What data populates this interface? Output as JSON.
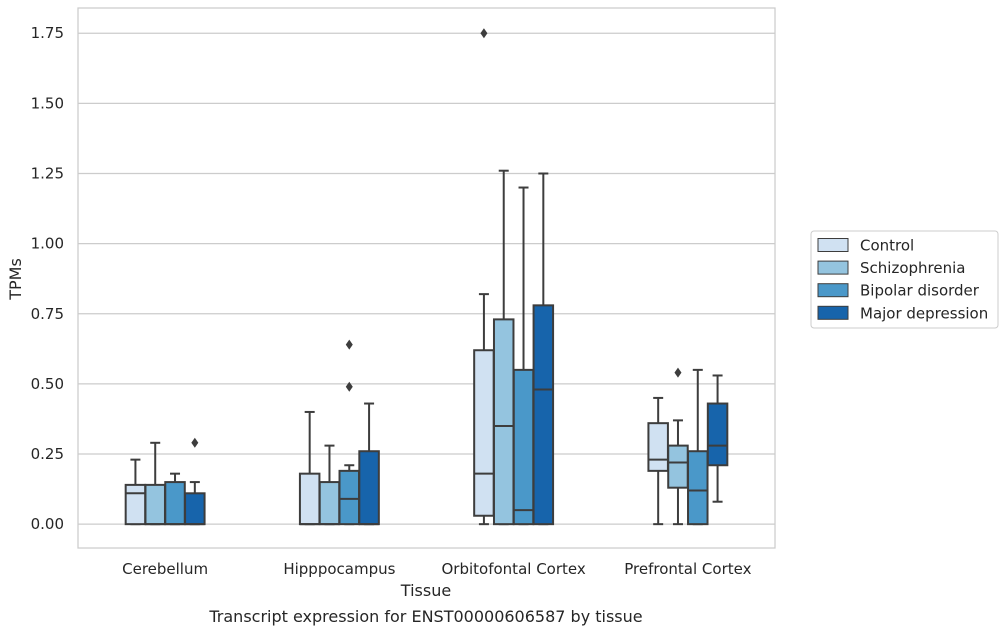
{
  "chart_data": {
    "type": "boxplot",
    "caption": "Transcript expression for ENST00000606587 by tissue",
    "xlabel": "Tissue",
    "ylabel": "TPMs",
    "ylim": [
      -0.085,
      1.84
    ],
    "yticks": [
      0.0,
      0.25,
      0.5,
      0.75,
      1.0,
      1.25,
      1.5,
      1.75
    ],
    "ytick_labels": [
      "0.00",
      "0.25",
      "0.50",
      "0.75",
      "1.00",
      "1.25",
      "1.50",
      "1.75"
    ],
    "grid": "horizontal",
    "legend_position": "right",
    "categories": [
      "Cerebellum",
      "Hipppocampus",
      "Orbitofontal Cortex",
      "Prefrontal Cortex"
    ],
    "series": [
      {
        "name": "Control",
        "color": "#d0e1f2",
        "boxes": [
          {
            "whislo": 0.0,
            "q1": 0.0,
            "med": 0.11,
            "q3": 0.14,
            "whishi": 0.23,
            "fliers": []
          },
          {
            "whislo": 0.0,
            "q1": 0.0,
            "med": 0.0,
            "q3": 0.18,
            "whishi": 0.4,
            "fliers": []
          },
          {
            "whislo": 0.0,
            "q1": 0.03,
            "med": 0.18,
            "q3": 0.62,
            "whishi": 0.82,
            "fliers": [
              1.75
            ]
          },
          {
            "whislo": 0.0,
            "q1": 0.19,
            "med": 0.23,
            "q3": 0.36,
            "whishi": 0.45,
            "fliers": []
          }
        ]
      },
      {
        "name": "Schizophrenia",
        "color": "#94c4df",
        "boxes": [
          {
            "whislo": 0.0,
            "q1": 0.0,
            "med": 0.0,
            "q3": 0.14,
            "whishi": 0.29,
            "fliers": []
          },
          {
            "whislo": 0.0,
            "q1": 0.0,
            "med": 0.0,
            "q3": 0.15,
            "whishi": 0.28,
            "fliers": []
          },
          {
            "whislo": 0.0,
            "q1": 0.0,
            "med": 0.35,
            "q3": 0.73,
            "whishi": 1.26,
            "fliers": []
          },
          {
            "whislo": 0.0,
            "q1": 0.13,
            "med": 0.22,
            "q3": 0.28,
            "whishi": 0.37,
            "fliers": [
              0.54
            ]
          }
        ]
      },
      {
        "name": "Bipolar disorder",
        "color": "#4a98c9",
        "boxes": [
          {
            "whislo": 0.0,
            "q1": 0.0,
            "med": 0.0,
            "q3": 0.15,
            "whishi": 0.18,
            "fliers": []
          },
          {
            "whislo": 0.0,
            "q1": 0.0,
            "med": 0.09,
            "q3": 0.19,
            "whishi": 0.21,
            "fliers": [
              0.49,
              0.64
            ]
          },
          {
            "whislo": 0.0,
            "q1": 0.0,
            "med": 0.05,
            "q3": 0.55,
            "whishi": 1.2,
            "fliers": []
          },
          {
            "whislo": 0.0,
            "q1": 0.0,
            "med": 0.12,
            "q3": 0.26,
            "whishi": 0.55,
            "fliers": []
          }
        ]
      },
      {
        "name": "Major depression",
        "color": "#1764ab",
        "boxes": [
          {
            "whislo": 0.0,
            "q1": 0.0,
            "med": 0.0,
            "q3": 0.11,
            "whishi": 0.15,
            "fliers": [
              0.29
            ]
          },
          {
            "whislo": 0.0,
            "q1": 0.0,
            "med": 0.0,
            "q3": 0.26,
            "whishi": 0.43,
            "fliers": []
          },
          {
            "whislo": 0.0,
            "q1": 0.0,
            "med": 0.48,
            "q3": 0.78,
            "whishi": 1.25,
            "fliers": []
          },
          {
            "whislo": 0.08,
            "q1": 0.21,
            "med": 0.28,
            "q3": 0.43,
            "whishi": 0.53,
            "fliers": []
          }
        ]
      }
    ]
  }
}
